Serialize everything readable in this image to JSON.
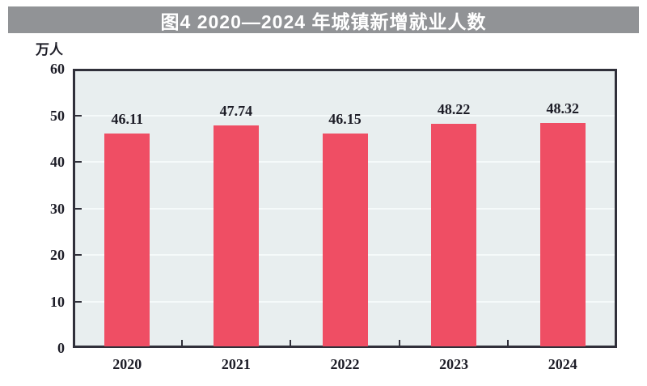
{
  "title_bar": {
    "text": "图4 2020—2024 年城镇新增就业人数",
    "bg_color": "#919396",
    "text_color": "#FFFFFF"
  },
  "chart_data": {
    "type": "bar",
    "title": "图4 2020—2024 年城镇新增就业人数",
    "unit_label": "万人",
    "categories": [
      "2020",
      "2021",
      "2022",
      "2023",
      "2024"
    ],
    "values": [
      46.11,
      47.74,
      46.15,
      48.22,
      48.32
    ],
    "value_labels": [
      "46.11",
      "47.74",
      "46.15",
      "48.22",
      "48.32"
    ],
    "ylabel": "万人",
    "xlabel": "",
    "ylim": [
      0,
      60
    ],
    "yticks": [
      0,
      10,
      20,
      30,
      40,
      50,
      60
    ],
    "grid": true,
    "legend_position": "none",
    "colors": {
      "bar": "#EF4E64",
      "plot_background": "#E8EEEF",
      "axis": "#30303A",
      "gridline": "#F5FAFA",
      "tick_text": "#1D1D27",
      "value_label_text": "#1D1D27"
    }
  }
}
